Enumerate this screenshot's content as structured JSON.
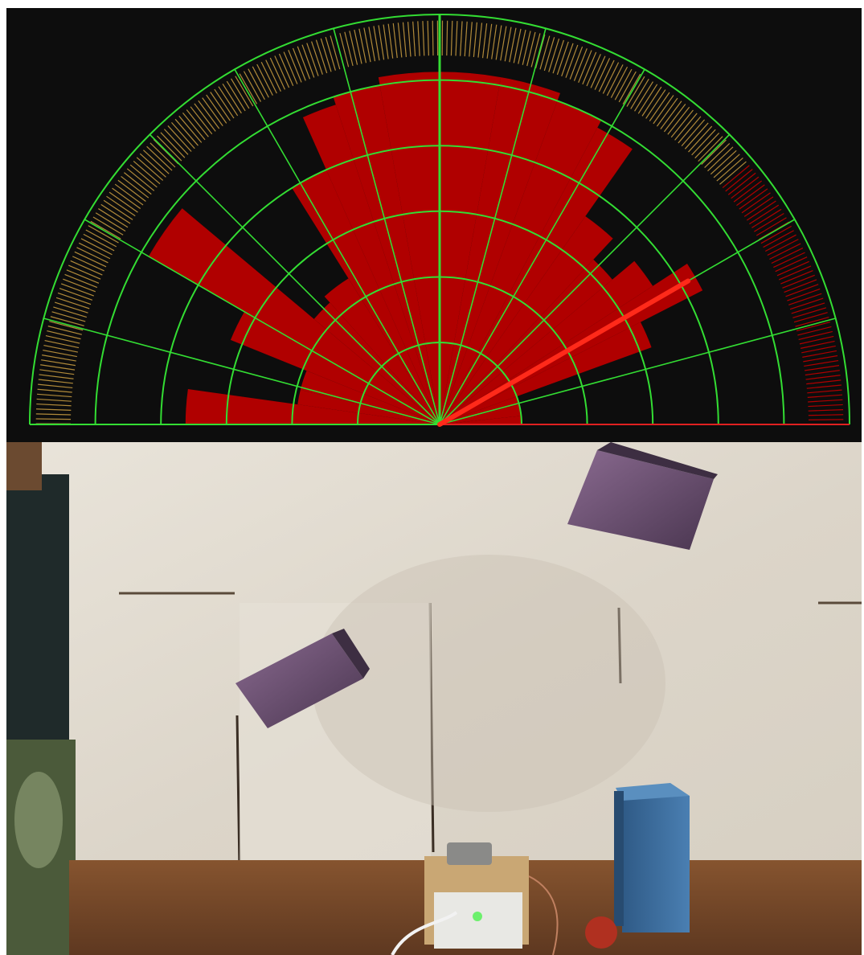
{
  "radar": {
    "colors": {
      "background": "#0d0d0d",
      "grid": "#33dd33",
      "echo": "#b00000",
      "sweep": "#ff2a1a",
      "baseline_right": "#e02020"
    },
    "sweep_angle_deg": 30,
    "echo_profile": [
      {
        "from_deg": 0,
        "to_deg": 6,
        "range": 0.2
      },
      {
        "from_deg": 6,
        "to_deg": 14,
        "range": 0.2
      },
      {
        "from_deg": 14,
        "to_deg": 20,
        "range": 0.2
      },
      {
        "from_deg": 20,
        "to_deg": 27,
        "range": 0.55
      },
      {
        "from_deg": 27,
        "to_deg": 33,
        "range": 0.72
      },
      {
        "from_deg": 33,
        "to_deg": 40,
        "range": 0.62
      },
      {
        "from_deg": 40,
        "to_deg": 47,
        "range": 0.55
      },
      {
        "from_deg": 47,
        "to_deg": 55,
        "range": 0.62
      },
      {
        "from_deg": 55,
        "to_deg": 62,
        "range": 0.82
      },
      {
        "from_deg": 62,
        "to_deg": 70,
        "range": 0.84
      },
      {
        "from_deg": 70,
        "to_deg": 80,
        "range": 0.86
      },
      {
        "from_deg": 80,
        "to_deg": 90,
        "range": 0.86
      },
      {
        "from_deg": 90,
        "to_deg": 100,
        "range": 0.86
      },
      {
        "from_deg": 100,
        "to_deg": 108,
        "range": 0.84
      },
      {
        "from_deg": 108,
        "to_deg": 114,
        "range": 0.82
      },
      {
        "from_deg": 114,
        "to_deg": 122,
        "range": 0.68
      },
      {
        "from_deg": 122,
        "to_deg": 132,
        "range": 0.42
      },
      {
        "from_deg": 132,
        "to_deg": 140,
        "range": 0.4
      },
      {
        "from_deg": 140,
        "to_deg": 150,
        "range": 0.82
      },
      {
        "from_deg": 150,
        "to_deg": 158,
        "range": 0.55
      },
      {
        "from_deg": 158,
        "to_deg": 166,
        "range": 0.35
      },
      {
        "from_deg": 166,
        "to_deg": 172,
        "range": 0.35
      },
      {
        "from_deg": 172,
        "to_deg": 180,
        "range": 0.62
      }
    ]
  },
  "photo": {
    "colors": {
      "wall": "#e3ddd2",
      "wall_shadow": "#cfc7ba",
      "table": "#7a4a2c",
      "box_purple": "#6a4a6e",
      "box_blue": "#3a6a9a"
    }
  }
}
